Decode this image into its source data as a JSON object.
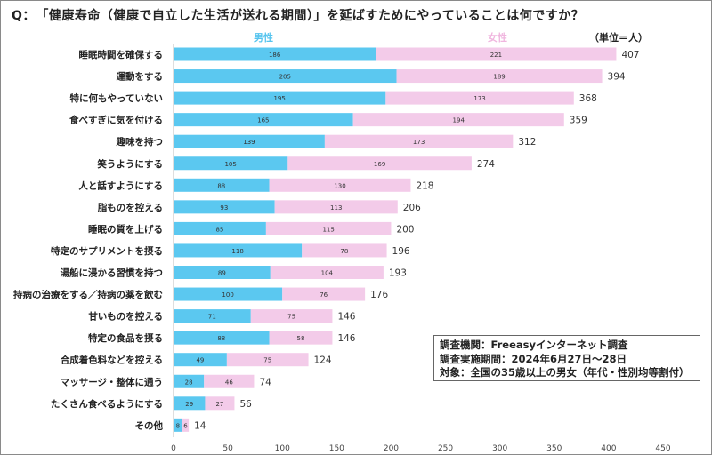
{
  "question": "Q：　「健康寿命（健康で自立した生活が送れる期間）」を延ばすためにやっていることは何ですか？",
  "chart_data": {
    "type": "bar",
    "orientation": "horizontal",
    "stacked": true,
    "legend_position": "top",
    "unit_label": "（単位＝人）",
    "categories": [
      "睡眠時間を確保する",
      "運動をする",
      "特に何もやっていない",
      "食べすぎに気を付ける",
      "趣味を持つ",
      "笑うようにする",
      "人と話すようにする",
      "脂ものを控える",
      "睡眠の質を上げる",
      "特定のサプリメントを摂る",
      "湯船に浸かる習慣を持つ",
      "持病の治療をする／持病の薬を飲む",
      "甘いものを控える",
      "特定の食品を摂る",
      "合成着色料などを控える",
      "マッサージ・整体に通う",
      "たくさん食べるようにする",
      "その他"
    ],
    "series": [
      {
        "name": "男性",
        "color": "#5bc8f0",
        "values": [
          186,
          205,
          195,
          165,
          139,
          105,
          88,
          93,
          85,
          118,
          89,
          100,
          71,
          88,
          49,
          28,
          29,
          8
        ]
      },
      {
        "name": "女性",
        "color": "#f3cbe9",
        "values": [
          221,
          189,
          173,
          194,
          173,
          169,
          130,
          113,
          115,
          78,
          104,
          76,
          75,
          58,
          75,
          46,
          27,
          6
        ]
      }
    ],
    "totals": [
      407,
      394,
      368,
      359,
      312,
      274,
      218,
      206,
      200,
      196,
      193,
      176,
      146,
      146,
      124,
      74,
      56,
      14
    ],
    "xlim": [
      0,
      450
    ],
    "xticks": [
      "0",
      "50",
      "100",
      "150",
      "200",
      "250",
      "300",
      "350",
      "400",
      "450"
    ],
    "legend_colors": {
      "male": "#56c4ee",
      "female": "#f0b6df"
    }
  },
  "info": {
    "line1": "調査機関：Freeasyインターネット調査",
    "line2": "調査実施期間：2024年6月27日〜28日",
    "line3": "対象：全国の35歳以上の男女（年代・性別均等割付）"
  }
}
